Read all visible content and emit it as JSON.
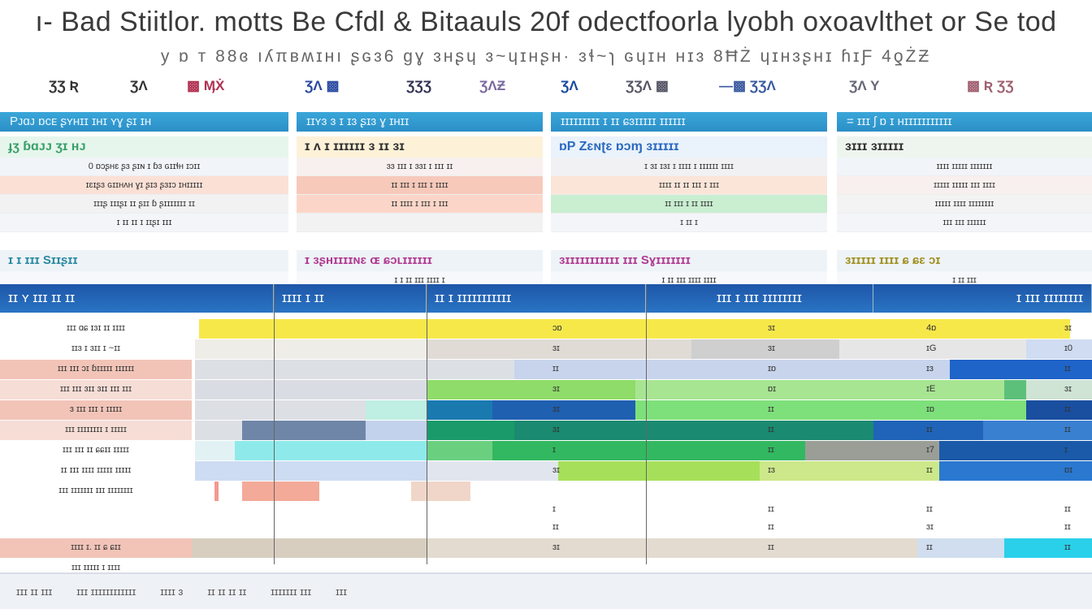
{
  "title": "ı- Bad Stiitlor. motts Be Cfdl & Bitaauls 20f odectfoorla lyobh oxoavlthet or Se tod",
  "subtitle": "y ɒ ᴛ  88ɞ ıʎπʙʍɪʜı ʂɢɜ6  ɡɣ  ɜʜʂɥ  ɜ~ɥɪʜʂʜ·  ɜɬ~ɿ ɢɥɪʜ ʜɪɜ 8ĦŻ ɥɪʜɜʂʜɪ  ɦɪƑ  4ƍŻƵ",
  "logos": [
    {
      "text": "ƷƷ Ʀ",
      "color": "#333"
    },
    {
      "text": "ƷɅ",
      "color": "#333"
    },
    {
      "text": "▩ ӍẊ",
      "color": "#b03050"
    },
    {
      "text": "ƷɅ ▩",
      "color": "#2a4aa0"
    },
    {
      "text": "ƷƷƷ",
      "color": "#335"
    },
    {
      "text": "ƷɅƵ",
      "color": "#7a6aa0"
    },
    {
      "text": "ƷɅ",
      "color": "#1a4aa0"
    },
    {
      "text": "ƷƷɅ ▩",
      "color": "#556"
    },
    {
      "text": "—▩ ƷƷɅ",
      "color": "#3a5aa0"
    },
    {
      "text": "ƷɅ Y",
      "color": "#667"
    },
    {
      "text": "▩ Ʀ ƷƷ",
      "color": "#a06070"
    }
  ],
  "sections": [
    {
      "header": "Pᴊɑᴊ  ɒᴄᴇ ʂʏʜɪɪ ɪʜɪ ʏɣ ʂɪ ɪʜ",
      "sub": "ɟʒ   ɓɑᴊᴊ ʒɪ ʜᴊ",
      "sub_color": "#3aa06a",
      "rows": [
        "0 ɒɔʂʜɛ ʂɜ ʂɪɴ ɪ ɓɜ ɢɪɪɬʜ ɪɔɪɪ",
        "ɪɛɪʂɜ ɢɪɪʜʌʜ ɣɪ ʂɪɜ ʂɜɪɔ ɪʜɪɪɪɪɪ",
        "ɪɪɪʂ ɪɪɪʂɪ ɪɪ ʂɪɪ ɓ ʂɪɪɪɪɪɪɪ ɪɪ",
        "ɪ ɪɪ ɪɪ ɪ ɪɪʂɪ ɪɪɪ"
      ],
      "sub2": "ɪ   ɪ  ɪɪɪ  Sɪɪʂɪɪ",
      "sub2_color": "#2a8aa0",
      "row2": ""
    },
    {
      "header": "ɪɪʏɜ ɜ ɪ  ɪɜ ʂɪɜ  ɣ  ɪʜɪɪ",
      "sub": "ɪ ʌ ɪ ɪɪɪɪɪɪ ɜ ɪɪ ɜɪ",
      "sub_color": "#333",
      "rows": [
        "ɜɜ ɪɪɪ ɪ ɜɜɪ ɪ ɪɪɪ ɪɪ",
        "ɪɪ ɪɪɪ ɪ ɪɪɪ ɪ ɪɪɪɪ",
        "ɪɪ  ɪɪɪɪ  ɪ ɪɪɪ ɪ ɪɪɪ",
        ""
      ],
      "sub2": "ɪ ɜʂʜɪɪɪɪɴɛ ɶ ɕɔʟɪɪɪɪɪɪ",
      "sub2_color": "#b03a90",
      "row2": "ɪ ɪ ɪɪ ɪɪɪ ɪɪɪɪ ɪ"
    },
    {
      "header": "ɪɪɪɪɪɪɪɪɪ ɪ ɪɪ ɕɜɪɪɪɪɪ ɪɪɪɪɪɪ",
      "sub": "ɒP Zɛɴʈɛ  ɒɔɱ ɜɪɪɪɪɪ",
      "sub_color": "#2a6ac0",
      "rows": [
        "ɪ ɜɪ ɪɜɪ ɪ ɪɪɪɪ ɪ ɪɪɪɪɪɪ ɪɪɪɪ",
        "ɪɪɪɪ ɪɪ ɪɪ  ɪɪɪ ɪ ɪɪɪ",
        "ɪɪ  ɪɪɪ ɪ  ɪɪ ɪɪɪɪ",
        "ɪ ɪɪ ɪ"
      ],
      "sub2": "ɜɪɪɪɪɪɪɪɪɪɪɪ ɪɪɪ Sɣɪɪɪɪɪɪɪ",
      "sub2_color": "#b03a90",
      "row2": "ɪ ɪɪ ɪɪɪ ɪɪɪɪ ɪɪɪɪ"
    },
    {
      "header": "=   ɪɪɪ ʃ ɒ  ɪ ʜɪɪɪɪɪɪɪɪɪɪɪ",
      "sub": "ɜɪɪɪ ɜɪɪɪɪɪ",
      "sub_color": "#333",
      "rows": [
        "ɪɪɪɪ ɪɪɪɪɪ ɪɪɪɪɪɪɪ",
        "ɪɪɪɪɪ ɪɪɪɪɪ ɪɪɪ ɪɪɪɪ",
        "ɪɪɪɪɪ ɪɪɪɪ ɪɪɪɪɪɪɪɪ",
        "ɪɪɪ ɪɪɪ ɪɪɪɪɪɪ"
      ],
      "sub2": "ɜɪɪɪɪɪ ɪɪɪɪ  ɕ ɕɛ ɔɪ",
      "sub2_color": "#a09020",
      "row2": "ɪ ɪɪ ɪɪɪ"
    }
  ],
  "table": {
    "headers": [
      "ɪɪ ʏ  ɪɪɪ ɪɪ ɪɪ",
      "ɪɪɪɪ ɪ ɪɪ",
      "ɪɪ ɪ ɪɪɪɪɪɪɪɪɪɪɪ",
      "ɪɪɪ ɪ ɪɪɪ ɪɪɪɪɪɪɪɪ",
      "ɪ ɪɪɪ ɪɪɪɪɪɪɪɪ"
    ],
    "rows": [
      {
        "label": "ɪɪɪ ɑɕ ɪɜɪ ɪɪ ɪɪɪɪ",
        "label_bg": "#ffffff",
        "values": [
          "ɔɒ",
          "ɜɪ",
          "4ɒ",
          "ɜɪ"
        ],
        "segments": [
          {
            "from": 0.05,
            "to": 4.9,
            "color": "#f7e84a"
          }
        ]
      },
      {
        "label": "ɪɪɜ ɪ ɜɪɪ ɪ ~ɪɪ",
        "label_bg": "#ffffff",
        "values": [
          "ɜɪ",
          "ɜɪ",
          "ɪG",
          "ɪ0"
        ],
        "segments": [
          {
            "from": 0.0,
            "to": 2.0,
            "color": "#efede8"
          },
          {
            "from": 2.0,
            "to": 3.2,
            "color": "#e0dbd5"
          },
          {
            "from": 3.2,
            "to": 3.85,
            "color": "#cfcfcf"
          },
          {
            "from": 3.85,
            "to": 4.7,
            "color": "#e6e6e6"
          },
          {
            "from": 4.7,
            "to": 5.0,
            "color": "#cfdcf2"
          }
        ]
      },
      {
        "label": "ɪɪɪ ɪɪɪ ɔɪ ɓɪɪɪɪɪ ɪɪɪɪɪɪ",
        "label_bg": "#f2c4b8",
        "values": [
          "ɪɪ",
          "ɪɒ",
          "ɪɜ",
          "ɪɪ"
        ],
        "segments": [
          {
            "from": 0.0,
            "to": 2.0,
            "color": "#dcdfe4"
          },
          {
            "from": 2.0,
            "to": 2.4,
            "color": "#dcdfe4"
          },
          {
            "from": 2.4,
            "to": 4.35,
            "color": "#c7d4ec"
          },
          {
            "from": 4.35,
            "to": 5.0,
            "color": "#1f64c8"
          }
        ]
      },
      {
        "label": "ɪɪɪ ɪɪɪ ɜɪɪ ɜɪɪ ɪɪɪ ɪɪɪ",
        "label_bg": "#f6ddd5",
        "values": [
          "ɜɪ",
          "ɒɪ",
          "ɪE",
          "ɜɪ"
        ],
        "segments": [
          {
            "from": 0.0,
            "to": 2.0,
            "color": "#d9dde3"
          },
          {
            "from": 2.0,
            "to": 2.95,
            "color": "#8fdc6a"
          },
          {
            "from": 2.95,
            "to": 4.6,
            "color": "#a7e592"
          },
          {
            "from": 4.6,
            "to": 4.7,
            "color": "#5cc07a"
          },
          {
            "from": 4.7,
            "to": 5.0,
            "color": "#cfe4d5"
          }
        ]
      },
      {
        "label": "ɜ ɪɪɪ ɪɪɪ ɪ ɪɪɪɪɪ",
        "label_bg": "#f2c4b8",
        "values": [
          "ɜɪ",
          "ɪɪ",
          "ɪɒ",
          "ɪɪ"
        ],
        "segments": [
          {
            "from": 0.0,
            "to": 1.6,
            "color": "#dcdfe4"
          },
          {
            "from": 1.6,
            "to": 2.0,
            "color": "#bfeee2"
          },
          {
            "from": 2.0,
            "to": 2.3,
            "color": "#1a7ab0"
          },
          {
            "from": 2.3,
            "to": 2.95,
            "color": "#2060b0"
          },
          {
            "from": 2.95,
            "to": 4.7,
            "color": "#7ee07a"
          },
          {
            "from": 4.7,
            "to": 5.0,
            "color": "#1a4fa0"
          }
        ]
      },
      {
        "label": "ɪɪɪ ɪɪɪɪɪɪɪɪ ɪ ɪɪɪɪɪ",
        "label_bg": "#f6ddd5",
        "values": [
          "ɜɪ",
          "ɪɪ",
          "ɪɪ",
          "ɪɪ"
        ],
        "segments": [
          {
            "from": 0.0,
            "to": 0.6,
            "color": "#dcdfe4"
          },
          {
            "from": 0.6,
            "to": 1.6,
            "color": "#6f86a8"
          },
          {
            "from": 1.6,
            "to": 2.0,
            "color": "#c3d2ec"
          },
          {
            "from": 2.0,
            "to": 2.4,
            "color": "#1a9a6a"
          },
          {
            "from": 2.4,
            "to": 4.0,
            "color": "#1a8a70"
          },
          {
            "from": 4.0,
            "to": 4.5,
            "color": "#1f64b8"
          },
          {
            "from": 4.5,
            "to": 5.0,
            "color": "#3a80d0"
          }
        ]
      },
      {
        "label": "ɪɪɪ ɪɪɪ ɪɪ ɕɕɪɪ ɪɪɪɪɪ",
        "label_bg": "#ffffff",
        "values": [
          "ɪ",
          "ɪɪ",
          "ɪ7",
          "ɪ"
        ],
        "segments": [
          {
            "from": 0.0,
            "to": 0.5,
            "color": "#e2f2f4"
          },
          {
            "from": 0.5,
            "to": 2.0,
            "color": "#8eeaea"
          },
          {
            "from": 2.0,
            "to": 2.3,
            "color": "#6ad080"
          },
          {
            "from": 2.3,
            "to": 3.7,
            "color": "#32b860"
          },
          {
            "from": 3.7,
            "to": 4.3,
            "color": "#9a9e96"
          },
          {
            "from": 4.3,
            "to": 5.0,
            "color": "#1a5aa8"
          }
        ]
      },
      {
        "label": "ɪɪ ɪɪɪ ɪɪɪɪ ɪɪɪɪɪ ɪɪɪɪɪ",
        "label_bg": "#ffffff",
        "values": [
          "ɜɪ",
          "ɪɜ",
          "ɪɪ",
          "ɒɪ"
        ],
        "segments": [
          {
            "from": 0.0,
            "to": 2.0,
            "color": "#cddcf2"
          },
          {
            "from": 2.0,
            "to": 2.6,
            "color": "#e1e6ee"
          },
          {
            "from": 2.6,
            "to": 3.5,
            "color": "#a6e05a"
          },
          {
            "from": 3.5,
            "to": 4.3,
            "color": "#cde88a"
          },
          {
            "from": 4.3,
            "to": 5.0,
            "color": "#2a78d0"
          }
        ]
      },
      {
        "label": "ɪɪɪ ɪɪɪɪɪɪɪ ɪɪɪ ɪɪɪɪɪɪɪɪ",
        "label_bg": "#ffffff",
        "values": [
          "ɪ",
          "ɪɪ",
          "ɪɪ",
          "ɪɪ"
        ],
        "segments": [
          {
            "from": 0.25,
            "to": 0.3,
            "color": "#f29a90"
          },
          {
            "from": 0.6,
            "to": 1.3,
            "color": "#f4aa98"
          },
          {
            "from": 1.9,
            "to": 2.2,
            "color": "#f0d6c8"
          }
        ]
      },
      {
        "label": "",
        "label_bg": "#ffffff",
        "values": [
          "ɪɪ",
          "ɪɪ",
          "ɜɪ",
          "ɪɪ"
        ],
        "segments": []
      },
      {
        "label": "ɪɪɪɪ  ɪ. ɪɪ ɕ ɕɪɪ",
        "label_bg": "#f2c4b8",
        "values": [
          "ɜɪ",
          "ɪɪ",
          "ɪɪ",
          "ɪɪ"
        ],
        "segments": [
          {
            "from": -0.3,
            "to": 2.0,
            "color": "#d8cec0"
          },
          {
            "from": 2.0,
            "to": 4.2,
            "color": "#e3dbd0"
          },
          {
            "from": 4.2,
            "to": 4.6,
            "color": "#d0deef"
          },
          {
            "from": 4.6,
            "to": 5.0,
            "color": "#2ad0ea"
          }
        ]
      },
      {
        "label": "ɪɪɪ ɪɪɪɪɪ ɪ ɪɪɪɪ",
        "label_bg": "#ffffff",
        "values": [
          "",
          "",
          "",
          ""
        ],
        "segments": []
      }
    ]
  },
  "footer": {
    "items": [
      "ɪɪɪ ɪɪ ɪɪɪ",
      "ɪɪɪ ɪɪɪɪɪɪɪɪɪɪɪɪ",
      "ɪɪɪɪ ɜ",
      "ɪɪ ɪɪ ɪɪ ɪɪ",
      "ɪɪɪɪɪɪɪ ɪɪɪ",
      "ɪɪɪ"
    ]
  }
}
